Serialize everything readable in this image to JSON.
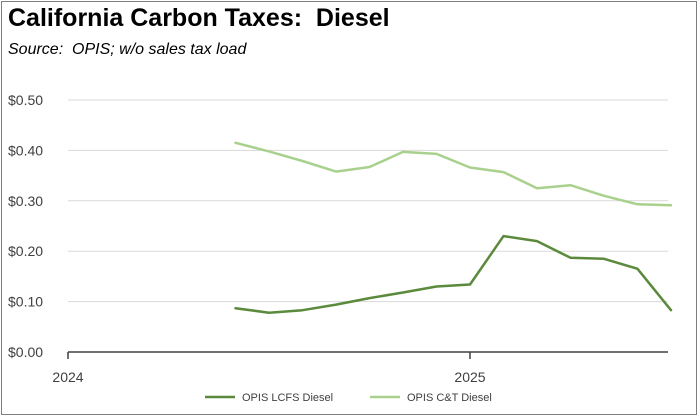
{
  "chart_data": {
    "type": "line",
    "title": "California Carbon Taxes:  Diesel",
    "subtitle": "Source:  OPIS; w/o sales tax load",
    "xlabel": "",
    "ylabel": "",
    "ylim": [
      0,
      0.5
    ],
    "y_ticks": [
      "$0.00",
      "$0.10",
      "$0.20",
      "$0.30",
      "$0.40",
      "$0.50"
    ],
    "x_tick_labels": [
      "2024",
      "2025"
    ],
    "x": [
      "2024-06",
      "2024-07",
      "2024-08",
      "2024-09",
      "2024-10",
      "2024-11",
      "2024-12",
      "2025-01",
      "2025-02",
      "2025-03",
      "2025-04",
      "2025-05",
      "2025-06",
      "2025-07"
    ],
    "grid": true,
    "legend_position": "bottom",
    "series": [
      {
        "name": "OPIS LCFS Diesel",
        "color": "#5b8a3c",
        "values": [
          0.087,
          0.078,
          0.083,
          0.094,
          0.107,
          0.118,
          0.13,
          0.134,
          0.23,
          0.22,
          0.187,
          0.185,
          0.165,
          0.083
        ]
      },
      {
        "name": "OPIS C&T Diesel",
        "color": "#a9d18e",
        "values": [
          0.415,
          0.398,
          0.379,
          0.358,
          0.367,
          0.397,
          0.393,
          0.366,
          0.357,
          0.325,
          0.331,
          0.31,
          0.293,
          0.291
        ]
      }
    ]
  }
}
